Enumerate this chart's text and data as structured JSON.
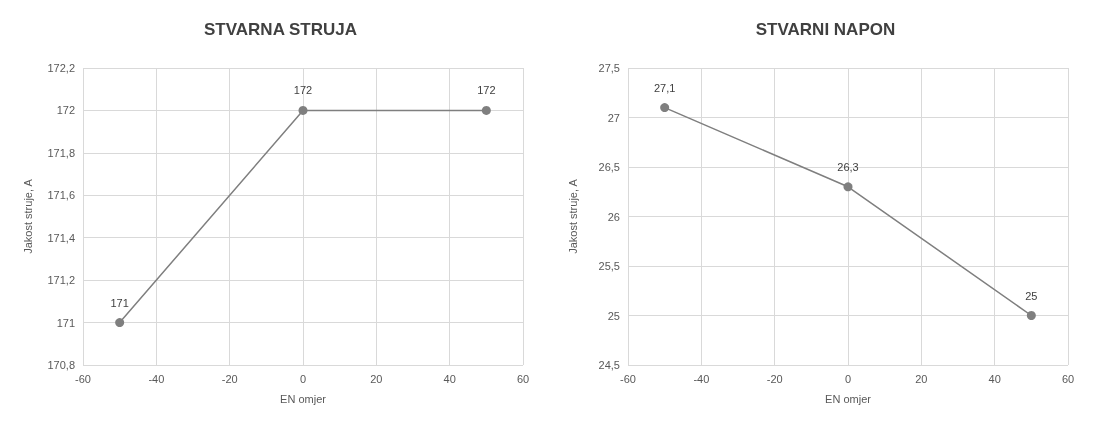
{
  "chart_data": [
    {
      "type": "line",
      "title": "STVARNA STRUJA",
      "xlabel": "EN omjer",
      "ylabel": "Jakost struje, A",
      "x": [
        -50,
        0,
        50
      ],
      "series": [
        {
          "color": "#7f7f7f",
          "values": [
            171,
            172,
            172
          ],
          "value_labels": [
            "171",
            "172",
            "172"
          ]
        }
      ],
      "xlim": [
        -60,
        60
      ],
      "xticks": [
        -60,
        -40,
        -20,
        0,
        20,
        40,
        60
      ],
      "ylim": [
        170.8,
        172.2
      ],
      "yticks": [
        {
          "value": 170.8,
          "label": "170,8"
        },
        171,
        {
          "value": 171.2,
          "label": "171,2"
        },
        {
          "value": 171.4,
          "label": "171,4"
        },
        {
          "value": 171.6,
          "label": "171,6"
        },
        {
          "value": 171.8,
          "label": "171,8"
        },
        172,
        {
          "value": 172.2,
          "label": "172,2"
        }
      ],
      "grid": true,
      "marker": "circle",
      "line_style": "solid"
    },
    {
      "type": "line",
      "title": "STVARNI NAPON",
      "xlabel": "EN omjer",
      "ylabel": "Jakost struje, A",
      "x": [
        -50,
        0,
        50
      ],
      "series": [
        {
          "color": "#7f7f7f",
          "values": [
            27.1,
            26.3,
            25
          ],
          "value_labels": [
            "27,1",
            "26,3",
            "25"
          ]
        }
      ],
      "xlim": [
        -60,
        60
      ],
      "xticks": [
        -60,
        -40,
        -20,
        0,
        20,
        40,
        60
      ],
      "ylim": [
        24.5,
        27.5
      ],
      "yticks": [
        {
          "value": 24.5,
          "label": "24,5"
        },
        25,
        {
          "value": 25.5,
          "label": "25,5"
        },
        26,
        {
          "value": 26.5,
          "label": "26,5"
        },
        27,
        {
          "value": 27.5,
          "label": "27,5"
        }
      ],
      "grid": true,
      "marker": "circle",
      "line_style": "solid"
    }
  ]
}
